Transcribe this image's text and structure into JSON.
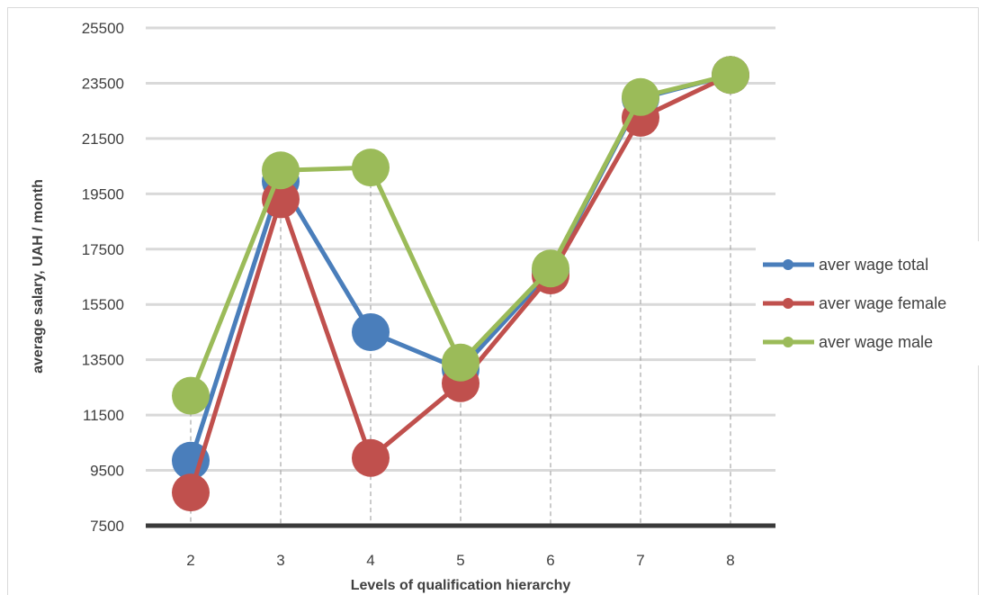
{
  "chart_data": {
    "type": "line",
    "title": "",
    "xlabel": "Levels of qualification hierarchy",
    "ylabel": "average salary, UAH / month",
    "x": [
      "2",
      "3",
      "4",
      "5",
      "6",
      "7",
      "8"
    ],
    "ylim": [
      7500,
      25500
    ],
    "yticks": [
      7500,
      9500,
      11500,
      13500,
      15500,
      17500,
      19500,
      21500,
      23500,
      25500
    ],
    "grid": true,
    "legend_position": "right",
    "series": [
      {
        "name": "aver wage total",
        "color": "#4a7ebb",
        "values": [
          9850,
          19950,
          14500,
          13150,
          16700,
          22950,
          23800
        ]
      },
      {
        "name": "aver wage female",
        "color": "#c0504d",
        "values": [
          8700,
          19300,
          9950,
          12650,
          16550,
          22250,
          23800
        ]
      },
      {
        "name": "aver wage male",
        "color": "#9bbb59",
        "values": [
          12200,
          20350,
          20450,
          13400,
          16800,
          23000,
          23800
        ]
      }
    ]
  }
}
